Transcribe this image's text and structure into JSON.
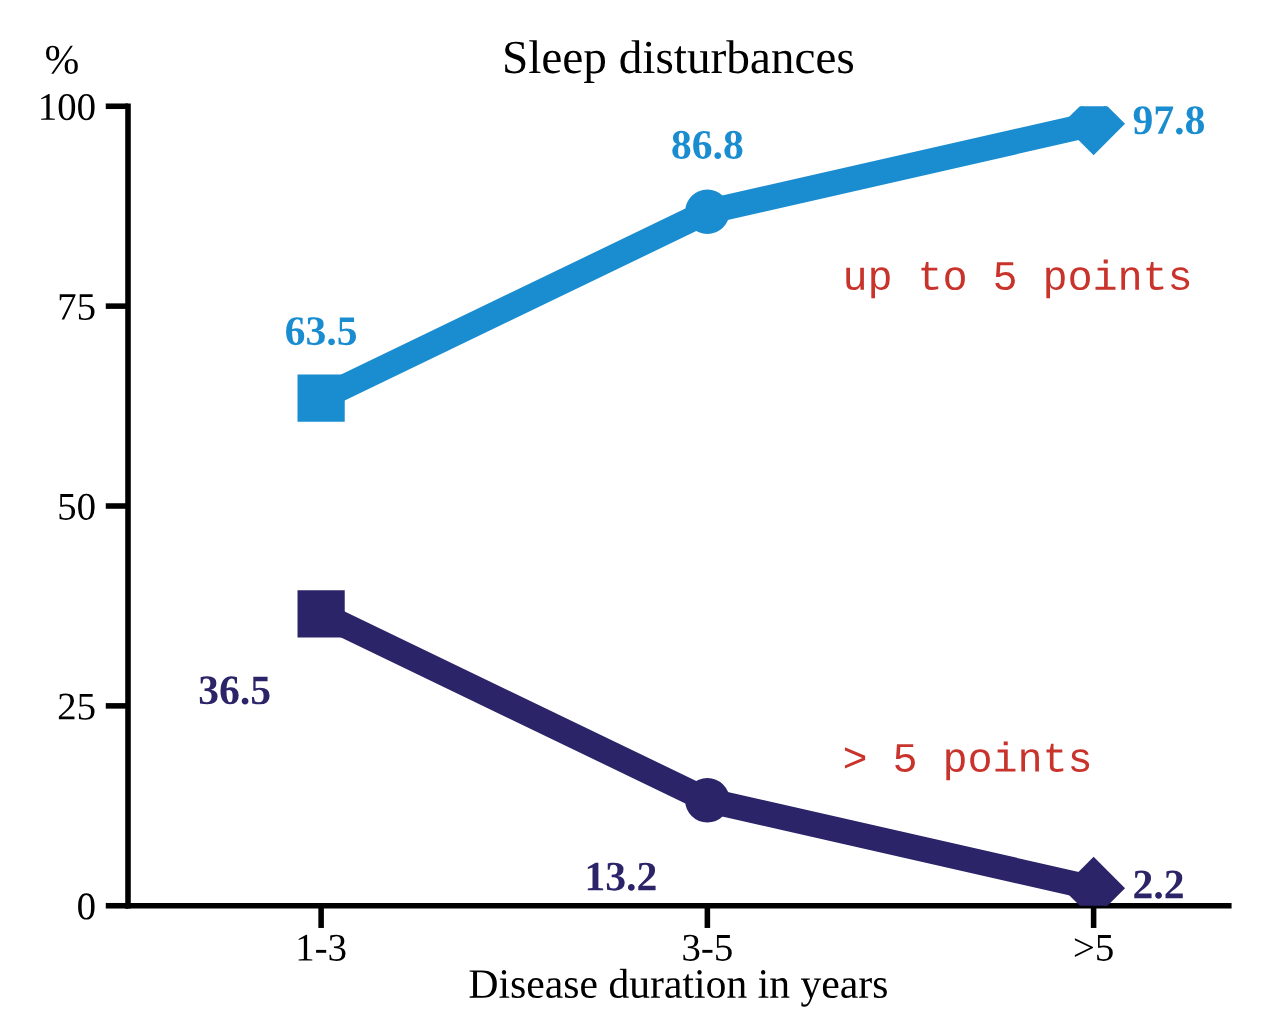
{
  "chart_data": {
    "type": "line",
    "title": "Sleep disturbances",
    "ylabel": "%",
    "xlabel": "Disease duration in years",
    "categories": [
      "1-3",
      "3-5",
      ">5"
    ],
    "series": [
      {
        "name": "up to 5 points",
        "color": "#1a8dd0",
        "values": [
          63.5,
          86.8,
          97.8
        ],
        "marker": [
          "square",
          "circle",
          "diamond"
        ]
      },
      {
        "name": "> 5 points",
        "color": "#2b2468",
        "values": [
          36.5,
          13.2,
          2.2
        ],
        "marker": [
          "square",
          "circle",
          "diamond"
        ]
      }
    ],
    "ylim": [
      0,
      100
    ],
    "yticks": [
      0,
      25,
      50,
      75,
      100
    ],
    "grid": false,
    "legend": false,
    "data_labels": true,
    "line_style": "solid"
  }
}
